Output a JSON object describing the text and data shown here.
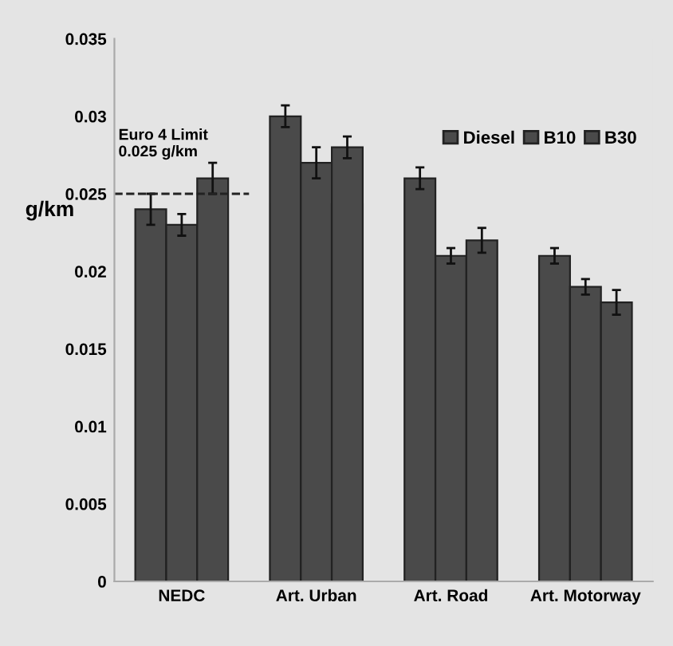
{
  "chart_data": {
    "type": "bar",
    "ylabel": "g/km",
    "categories": [
      "NEDC",
      "Art. Urban",
      "Art. Road",
      "Art. Motorway"
    ],
    "series": [
      {
        "name": "Diesel",
        "color": "#4a4a4a",
        "values": [
          0.024,
          0.03,
          0.026,
          0.021
        ],
        "errors": [
          0.001,
          0.0007,
          0.0007,
          0.0005
        ]
      },
      {
        "name": "B10",
        "color": "#4a4a4a",
        "values": [
          0.023,
          0.027,
          0.021,
          0.019
        ],
        "errors": [
          0.0007,
          0.001,
          0.0005,
          0.0005
        ]
      },
      {
        "name": "B30",
        "color": "#4a4a4a",
        "values": [
          0.026,
          0.028,
          0.022,
          0.018
        ],
        "errors": [
          0.001,
          0.0007,
          0.0008,
          0.0008
        ]
      }
    ],
    "ylim": [
      0,
      0.035
    ],
    "yticks": [
      0,
      0.005,
      0.01,
      0.015,
      0.02,
      0.025,
      0.03,
      0.035
    ],
    "ref_lines": [
      {
        "axis": "y",
        "value": 0.025,
        "label": "Euro 4 Limit\n0.025 g/km",
        "line_style": "dashed",
        "color": "#222222"
      }
    ],
    "grid": false,
    "legend": "top right"
  }
}
